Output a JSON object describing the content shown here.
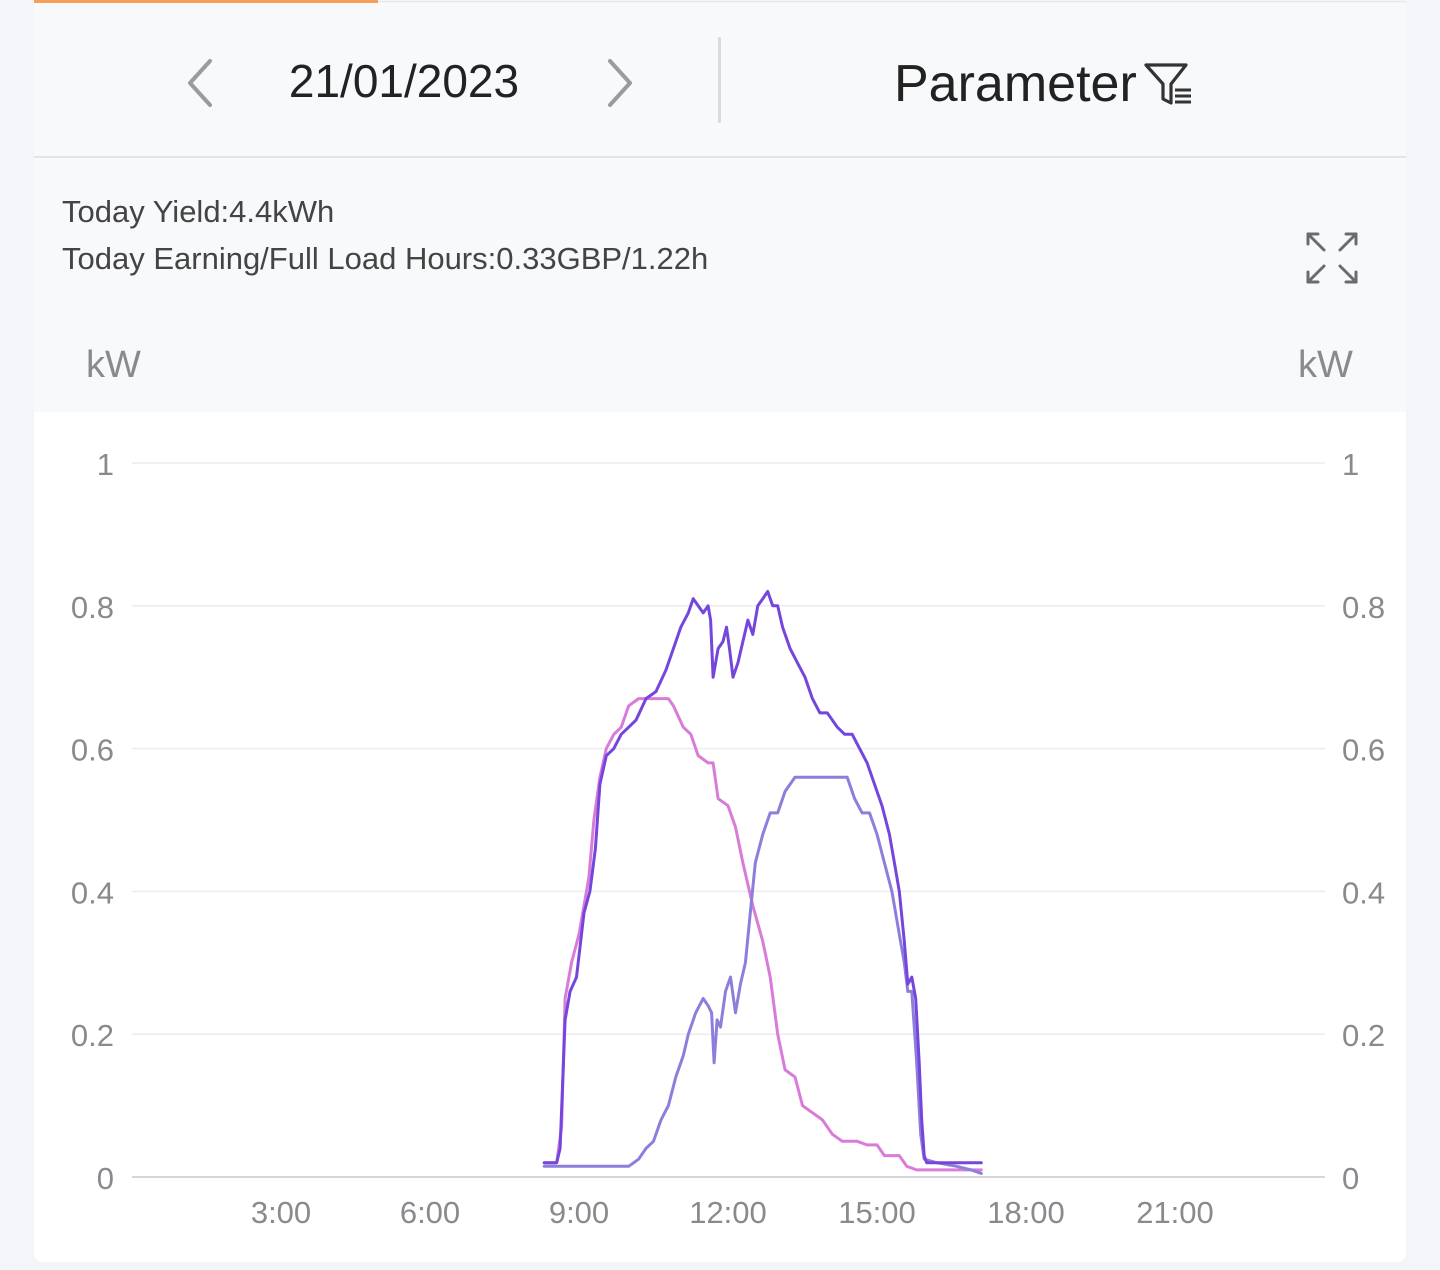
{
  "header": {
    "date": "21/01/2023",
    "prev_icon": "chevron-left-icon",
    "next_icon": "chevron-right-icon",
    "parameter_label": "Parameter",
    "parameter_icon": "filter-list-icon"
  },
  "stats": {
    "today_yield": "Today Yield:4.4kWh",
    "today_earning": "Today Earning/Full Load Hours:0.33GBP/1.22h",
    "expand_icon": "expand-icon"
  },
  "colors": {
    "accent_tab": "#f5a05a",
    "series_total": "#7446dc",
    "series_pink": "#d97bd8",
    "series_blue": "#8c7fdc",
    "grid": "#ececf0",
    "axis_text": "#8a8a8e"
  },
  "chart_data": {
    "type": "line",
    "left_unit": "kW",
    "right_unit": "kW",
    "y_ticks": [
      "0",
      "0.2",
      "0.4",
      "0.6",
      "0.8",
      "1"
    ],
    "ylim": [
      0,
      1
    ],
    "x_ticks": [
      "3:00",
      "6:00",
      "9:00",
      "12:00",
      "15:00",
      "18:00",
      "21:00"
    ],
    "xlim_hours": [
      0,
      24
    ],
    "grid": true,
    "series": [
      {
        "color": "#7446dc",
        "points": [
          [
            8.3,
            0.02
          ],
          [
            8.55,
            0.02
          ],
          [
            8.62,
            0.04
          ],
          [
            8.72,
            0.22
          ],
          [
            8.82,
            0.26
          ],
          [
            8.95,
            0.28
          ],
          [
            9.1,
            0.37
          ],
          [
            9.22,
            0.4
          ],
          [
            9.33,
            0.46
          ],
          [
            9.42,
            0.55
          ],
          [
            9.55,
            0.59
          ],
          [
            9.7,
            0.6
          ],
          [
            9.85,
            0.62
          ],
          [
            10.0,
            0.63
          ],
          [
            10.15,
            0.64
          ],
          [
            10.35,
            0.67
          ],
          [
            10.55,
            0.68
          ],
          [
            10.75,
            0.71
          ],
          [
            10.9,
            0.74
          ],
          [
            11.05,
            0.77
          ],
          [
            11.2,
            0.79
          ],
          [
            11.3,
            0.81
          ],
          [
            11.4,
            0.8
          ],
          [
            11.5,
            0.79
          ],
          [
            11.6,
            0.8
          ],
          [
            11.65,
            0.78
          ],
          [
            11.7,
            0.7
          ],
          [
            11.8,
            0.74
          ],
          [
            11.9,
            0.75
          ],
          [
            11.97,
            0.77
          ],
          [
            12.03,
            0.74
          ],
          [
            12.1,
            0.7
          ],
          [
            12.2,
            0.72
          ],
          [
            12.3,
            0.75
          ],
          [
            12.4,
            0.78
          ],
          [
            12.5,
            0.76
          ],
          [
            12.6,
            0.8
          ],
          [
            12.7,
            0.81
          ],
          [
            12.8,
            0.82
          ],
          [
            12.9,
            0.8
          ],
          [
            13.0,
            0.8
          ],
          [
            13.1,
            0.77
          ],
          [
            13.25,
            0.74
          ],
          [
            13.4,
            0.72
          ],
          [
            13.55,
            0.7
          ],
          [
            13.7,
            0.67
          ],
          [
            13.85,
            0.65
          ],
          [
            14.0,
            0.65
          ],
          [
            14.2,
            0.63
          ],
          [
            14.35,
            0.62
          ],
          [
            14.5,
            0.62
          ],
          [
            14.65,
            0.6
          ],
          [
            14.8,
            0.58
          ],
          [
            14.95,
            0.55
          ],
          [
            15.1,
            0.52
          ],
          [
            15.25,
            0.48
          ],
          [
            15.35,
            0.44
          ],
          [
            15.45,
            0.4
          ],
          [
            15.55,
            0.33
          ],
          [
            15.62,
            0.27
          ],
          [
            15.7,
            0.28
          ],
          [
            15.78,
            0.25
          ],
          [
            15.85,
            0.16
          ],
          [
            15.9,
            0.08
          ],
          [
            15.95,
            0.03
          ],
          [
            16.0,
            0.02
          ],
          [
            17.1,
            0.02
          ]
        ]
      },
      {
        "color": "#d97bd8",
        "points": [
          [
            8.3,
            0.02
          ],
          [
            8.55,
            0.02
          ],
          [
            8.65,
            0.07
          ],
          [
            8.72,
            0.25
          ],
          [
            8.85,
            0.3
          ],
          [
            9.0,
            0.34
          ],
          [
            9.1,
            0.38
          ],
          [
            9.2,
            0.42
          ],
          [
            9.3,
            0.5
          ],
          [
            9.42,
            0.56
          ],
          [
            9.55,
            0.6
          ],
          [
            9.7,
            0.62
          ],
          [
            9.85,
            0.63
          ],
          [
            10.0,
            0.66
          ],
          [
            10.2,
            0.67
          ],
          [
            10.4,
            0.67
          ],
          [
            10.6,
            0.67
          ],
          [
            10.8,
            0.67
          ],
          [
            10.9,
            0.66
          ],
          [
            11.1,
            0.63
          ],
          [
            11.25,
            0.62
          ],
          [
            11.4,
            0.59
          ],
          [
            11.6,
            0.58
          ],
          [
            11.7,
            0.58
          ],
          [
            11.8,
            0.53
          ],
          [
            12.0,
            0.52
          ],
          [
            12.15,
            0.49
          ],
          [
            12.3,
            0.44
          ],
          [
            12.5,
            0.38
          ],
          [
            12.7,
            0.33
          ],
          [
            12.85,
            0.28
          ],
          [
            13.0,
            0.2
          ],
          [
            13.15,
            0.15
          ],
          [
            13.35,
            0.14
          ],
          [
            13.5,
            0.1
          ],
          [
            13.7,
            0.09
          ],
          [
            13.9,
            0.08
          ],
          [
            14.1,
            0.06
          ],
          [
            14.3,
            0.05
          ],
          [
            14.6,
            0.05
          ],
          [
            14.8,
            0.045
          ],
          [
            15.0,
            0.045
          ],
          [
            15.15,
            0.03
          ],
          [
            15.45,
            0.03
          ],
          [
            15.6,
            0.015
          ],
          [
            15.8,
            0.01
          ],
          [
            16.3,
            0.01
          ],
          [
            17.1,
            0.01
          ]
        ]
      },
      {
        "color": "#8c7fdc",
        "points": [
          [
            8.3,
            0.015
          ],
          [
            9.1,
            0.015
          ],
          [
            10.0,
            0.015
          ],
          [
            10.2,
            0.025
          ],
          [
            10.35,
            0.04
          ],
          [
            10.5,
            0.05
          ],
          [
            10.65,
            0.08
          ],
          [
            10.8,
            0.1
          ],
          [
            10.95,
            0.14
          ],
          [
            11.1,
            0.17
          ],
          [
            11.2,
            0.2
          ],
          [
            11.35,
            0.23
          ],
          [
            11.5,
            0.25
          ],
          [
            11.6,
            0.24
          ],
          [
            11.67,
            0.23
          ],
          [
            11.72,
            0.16
          ],
          [
            11.78,
            0.22
          ],
          [
            11.85,
            0.21
          ],
          [
            11.95,
            0.26
          ],
          [
            12.05,
            0.28
          ],
          [
            12.15,
            0.23
          ],
          [
            12.25,
            0.27
          ],
          [
            12.35,
            0.3
          ],
          [
            12.45,
            0.37
          ],
          [
            12.55,
            0.44
          ],
          [
            12.7,
            0.48
          ],
          [
            12.85,
            0.51
          ],
          [
            13.0,
            0.51
          ],
          [
            13.15,
            0.54
          ],
          [
            13.35,
            0.56
          ],
          [
            13.6,
            0.56
          ],
          [
            14.0,
            0.56
          ],
          [
            14.4,
            0.56
          ],
          [
            14.55,
            0.53
          ],
          [
            14.7,
            0.51
          ],
          [
            14.85,
            0.51
          ],
          [
            15.0,
            0.48
          ],
          [
            15.15,
            0.44
          ],
          [
            15.3,
            0.4
          ],
          [
            15.45,
            0.34
          ],
          [
            15.55,
            0.3
          ],
          [
            15.62,
            0.26
          ],
          [
            15.7,
            0.26
          ],
          [
            15.8,
            0.16
          ],
          [
            15.88,
            0.06
          ],
          [
            15.95,
            0.025
          ],
          [
            16.2,
            0.02
          ],
          [
            16.6,
            0.015
          ],
          [
            16.9,
            0.01
          ],
          [
            17.1,
            0.005
          ]
        ]
      }
    ]
  }
}
